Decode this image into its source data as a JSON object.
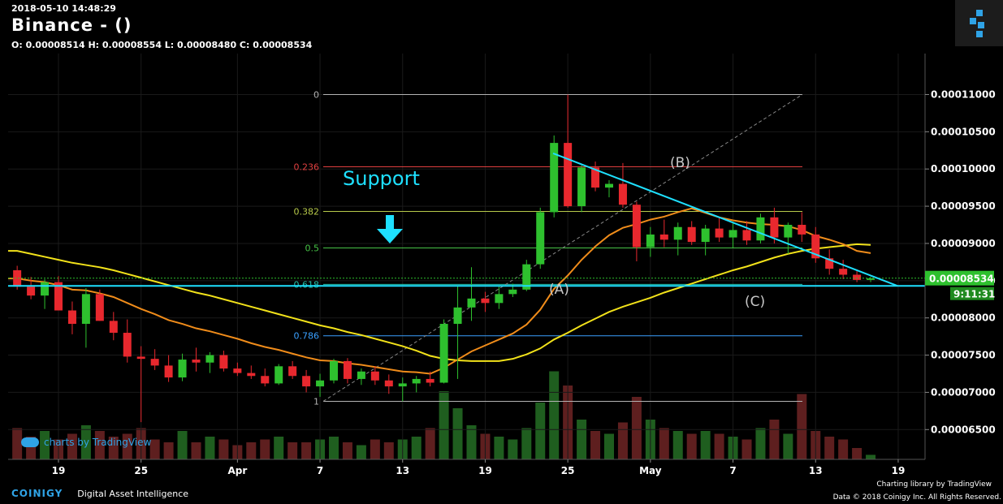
{
  "header": {
    "timestamp": "2018-05-10 14:48:29",
    "title": "Binance -  ()",
    "ohlc": "O: 0.00008514 H: 0.00008554 L: 0.00008480 C: 0.00008534"
  },
  "chart_data": {
    "type": "candlestick",
    "ylim": [
      6.1e-05,
      0.0001155
    ],
    "y_ticks": [
      "0.00011000",
      "0.00010500",
      "0.00010000",
      "0.00009500",
      "0.00009000",
      "0.00008500",
      "0.00008000",
      "0.00007500",
      "0.00007000",
      "0.00006500"
    ],
    "y_tick_values": [
      0.00011,
      0.000105,
      0.0001,
      9.5e-05,
      9e-05,
      8.5e-05,
      8e-05,
      7.5e-05,
      7e-05,
      6.5e-05
    ],
    "x_ticks": [
      "19",
      "25",
      "Apr",
      "7",
      "13",
      "19",
      "25",
      "May",
      "7",
      "13",
      "19"
    ],
    "x_tick_days": [
      0,
      6,
      13,
      19,
      25,
      31,
      37,
      43,
      49,
      55,
      61
    ],
    "last_price_label": "0.00008534",
    "countdown_label": "9:11:31",
    "fib_levels": [
      {
        "label": "0",
        "value": 0.00011,
        "color": "#b3b3b3"
      },
      {
        "label": "0.236",
        "value": 0.0001003,
        "color": "#e04040"
      },
      {
        "label": "0.382",
        "value": 9.43e-05,
        "color": "#b7c94a"
      },
      {
        "label": "0.5",
        "value": 8.94e-05,
        "color": "#47c447"
      },
      {
        "label": "0.618",
        "value": 8.45e-05,
        "color": "#22bfa8"
      },
      {
        "label": "0.786",
        "value": 7.76e-05,
        "color": "#3aa0ff"
      },
      {
        "label": "1",
        "value": 6.88e-05,
        "color": "#b3b3b3"
      }
    ],
    "annotations": {
      "support": "Support",
      "a": "(A)",
      "b": "(B)",
      "c": "(C)"
    },
    "candles_daily": [
      [
        8.64e-05,
        8.7e-05,
        8.38e-05,
        8.42e-05
      ],
      [
        8.42e-05,
        8.55e-05,
        8.25e-05,
        8.3e-05
      ],
      [
        8.3e-05,
        8.52e-05,
        8.12e-05,
        8.48e-05
      ],
      [
        8.48e-05,
        8.56e-05,
        8.1e-05,
        8.1e-05
      ],
      [
        8.1e-05,
        8.22e-05,
        7.78e-05,
        7.92e-05
      ],
      [
        7.92e-05,
        8.4e-05,
        7.6e-05,
        8.32e-05
      ],
      [
        8.32e-05,
        8.38e-05,
        7.96e-05,
        7.96e-05
      ],
      [
        7.96e-05,
        8.08e-05,
        7.7e-05,
        7.8e-05
      ],
      [
        7.8e-05,
        7.98e-05,
        7.4e-05,
        7.48e-05
      ],
      [
        7.48e-05,
        7.62e-05,
        6.6e-05,
        7.45e-05
      ],
      [
        7.45e-05,
        7.58e-05,
        7.3e-05,
        7.36e-05
      ],
      [
        7.36e-05,
        7.5e-05,
        7.14e-05,
        7.2e-05
      ],
      [
        7.2e-05,
        7.52e-05,
        7.15e-05,
        7.44e-05
      ],
      [
        7.44e-05,
        7.6e-05,
        7.28e-05,
        7.4e-05
      ],
      [
        7.4e-05,
        7.54e-05,
        7.26e-05,
        7.5e-05
      ],
      [
        7.5e-05,
        7.56e-05,
        7.28e-05,
        7.32e-05
      ],
      [
        7.32e-05,
        7.4e-05,
        7.22e-05,
        7.26e-05
      ],
      [
        7.26e-05,
        7.36e-05,
        7.18e-05,
        7.22e-05
      ],
      [
        7.22e-05,
        7.32e-05,
        7.08e-05,
        7.12e-05
      ],
      [
        7.12e-05,
        7.38e-05,
        7.1e-05,
        7.35e-05
      ],
      [
        7.35e-05,
        7.42e-05,
        7.18e-05,
        7.22e-05
      ],
      [
        7.22e-05,
        7.3e-05,
        7e-05,
        7.08e-05
      ],
      [
        7.08e-05,
        7.25e-05,
        6.94e-05,
        7.16e-05
      ],
      [
        7.16e-05,
        7.45e-05,
        7.12e-05,
        7.42e-05
      ],
      [
        7.42e-05,
        7.46e-05,
        7.12e-05,
        7.18e-05
      ],
      [
        7.18e-05,
        7.32e-05,
        7.1e-05,
        7.28e-05
      ],
      [
        7.28e-05,
        7.35e-05,
        7.1e-05,
        7.16e-05
      ],
      [
        7.16e-05,
        7.24e-05,
        6.98e-05,
        7.08e-05
      ],
      [
        7.08e-05,
        7.2e-05,
        6.88e-05,
        7.12e-05
      ],
      [
        7.12e-05,
        7.22e-05,
        7e-05,
        7.18e-05
      ],
      [
        7.18e-05,
        7.28e-05,
        7.08e-05,
        7.13e-05
      ],
      [
        7.13e-05,
        7.98e-05,
        7.12e-05,
        7.92e-05
      ],
      [
        7.92e-05,
        8.43e-05,
        7.18e-05,
        8.14e-05
      ],
      [
        8.14e-05,
        8.68e-05,
        7.96e-05,
        8.26e-05
      ],
      [
        8.26e-05,
        8.35e-05,
        8.08e-05,
        8.2e-05
      ],
      [
        8.2e-05,
        8.42e-05,
        8.12e-05,
        8.32e-05
      ],
      [
        8.32e-05,
        8.46e-05,
        8.28e-05,
        8.38e-05
      ],
      [
        8.38e-05,
        8.78e-05,
        8.36e-05,
        8.72e-05
      ],
      [
        8.72e-05,
        9.48e-05,
        8.66e-05,
        9.42e-05
      ],
      [
        9.42e-05,
        0.0001045,
        9.35e-05,
        0.0001035
      ],
      [
        0.0001035,
        0.00011,
        9.48e-05,
        9.5e-05
      ],
      [
        9.5e-05,
        0.0001005,
        9.42e-05,
        0.0001002
      ],
      [
        0.0001002,
        0.000101,
        9.7e-05,
        9.75e-05
      ],
      [
        9.75e-05,
        9.85e-05,
        9.62e-05,
        9.8e-05
      ],
      [
        9.8e-05,
        0.0001008,
        9.48e-05,
        9.52e-05
      ],
      [
        9.52e-05,
        9.56e-05,
        8.76e-05,
        8.95e-05
      ],
      [
        8.95e-05,
        9.22e-05,
        8.82e-05,
        9.12e-05
      ],
      [
        9.12e-05,
        9.32e-05,
        8.95e-05,
        9.05e-05
      ],
      [
        9.05e-05,
        9.28e-05,
        8.84e-05,
        9.22e-05
      ],
      [
        9.22e-05,
        9.3e-05,
        8.98e-05,
        9.02e-05
      ],
      [
        9.02e-05,
        9.25e-05,
        8.84e-05,
        9.2e-05
      ],
      [
        9.2e-05,
        9.34e-05,
        9.02e-05,
        9.08e-05
      ],
      [
        9.08e-05,
        9.28e-05,
        8.94e-05,
        9.18e-05
      ],
      [
        9.18e-05,
        9.3e-05,
        8.98e-05,
        9.04e-05
      ],
      [
        9.04e-05,
        9.4e-05,
        9e-05,
        9.35e-05
      ],
      [
        9.35e-05,
        9.48e-05,
        9e-05,
        9.08e-05
      ],
      [
        9.08e-05,
        9.28e-05,
        8.86e-05,
        9.25e-05
      ],
      [
        9.25e-05,
        9.42e-05,
        9.02e-05,
        9.12e-05
      ],
      [
        9.12e-05,
        9.22e-05,
        8.74e-05,
        8.8e-05
      ],
      [
        8.8e-05,
        8.92e-05,
        8.58e-05,
        8.66e-05
      ],
      [
        8.66e-05,
        8.78e-05,
        8.52e-05,
        8.58e-05
      ],
      [
        8.58e-05,
        8.64e-05,
        8.48e-05,
        8.51e-05
      ],
      [
        8.51e-05,
        8.55e-05,
        8.48e-05,
        8.53e-05
      ]
    ],
    "volume_relative": [
      0.55,
      0.4,
      0.5,
      0.35,
      0.45,
      0.6,
      0.5,
      0.4,
      0.45,
      0.55,
      0.35,
      0.3,
      0.5,
      0.3,
      0.4,
      0.35,
      0.25,
      0.3,
      0.35,
      0.4,
      0.3,
      0.3,
      0.35,
      0.4,
      0.3,
      0.25,
      0.35,
      0.3,
      0.35,
      0.4,
      0.55,
      1.2,
      0.9,
      0.6,
      0.45,
      0.4,
      0.35,
      0.55,
      1.0,
      1.55,
      1.3,
      0.7,
      0.5,
      0.45,
      0.65,
      1.1,
      0.7,
      0.55,
      0.5,
      0.45,
      0.5,
      0.45,
      0.4,
      0.35,
      0.55,
      0.7,
      0.45,
      1.15,
      0.5,
      0.4,
      0.35,
      0.2,
      0.08
    ],
    "ema_fast_orange": [
      8.53e-05,
      8.5e-05,
      8.48e-05,
      8.44e-05,
      8.38e-05,
      8.37e-05,
      8.33e-05,
      8.28e-05,
      8.2e-05,
      8.12e-05,
      8.05e-05,
      7.97e-05,
      7.92e-05,
      7.86e-05,
      7.82e-05,
      7.77e-05,
      7.72e-05,
      7.66e-05,
      7.61e-05,
      7.57e-05,
      7.52e-05,
      7.47e-05,
      7.43e-05,
      7.42e-05,
      7.39e-05,
      7.37e-05,
      7.34e-05,
      7.31e-05,
      7.28e-05,
      7.27e-05,
      7.25e-05,
      7.33e-05,
      7.44e-05,
      7.55e-05,
      7.63e-05,
      7.71e-05,
      7.79e-05,
      7.91e-05,
      8.11e-05,
      8.39e-05,
      8.57e-05,
      8.78e-05,
      8.96e-05,
      9.11e-05,
      9.21e-05,
      9.26e-05,
      9.32e-05,
      9.36e-05,
      9.42e-05,
      9.47e-05,
      9.41e-05,
      9.35e-05,
      9.31e-05,
      9.28e-05,
      9.26e-05,
      9.25e-05,
      9.23e-05,
      9.18e-05,
      9.1e-05,
      9.05e-05,
      8.99e-05,
      8.9e-05,
      8.87e-05
    ],
    "ema_slow_yellow": [
      8.9e-05,
      8.86e-05,
      8.82e-05,
      8.78e-05,
      8.74e-05,
      8.71e-05,
      8.68e-05,
      8.64e-05,
      8.59e-05,
      8.54e-05,
      8.49e-05,
      8.44e-05,
      8.39e-05,
      8.34e-05,
      8.3e-05,
      8.25e-05,
      8.2e-05,
      8.15e-05,
      8.1e-05,
      8.05e-05,
      8e-05,
      7.95e-05,
      7.9e-05,
      7.86e-05,
      7.81e-05,
      7.77e-05,
      7.72e-05,
      7.67e-05,
      7.62e-05,
      7.56e-05,
      7.49e-05,
      7.45e-05,
      7.43e-05,
      7.42e-05,
      7.42e-05,
      7.42e-05,
      7.45e-05,
      7.51e-05,
      7.59e-05,
      7.71e-05,
      7.8e-05,
      7.9e-05,
      7.99e-05,
      8.08e-05,
      8.15e-05,
      8.21e-05,
      8.27e-05,
      8.34e-05,
      8.4e-05,
      8.46e-05,
      8.52e-05,
      8.58e-05,
      8.64e-05,
      8.69e-05,
      8.75e-05,
      8.81e-05,
      8.86e-05,
      8.9e-05,
      8.93e-05,
      8.95e-05,
      8.97e-05,
      8.99e-05,
      8.98e-05
    ]
  },
  "watermark": "charts by TradingView",
  "footer": {
    "brand": "COINIGY",
    "tagline": "Digital Asset Intelligence",
    "charting": "Charting library by  TradingView",
    "copyright": "Data © 2018  Coinigy Inc. All Rights Reserved."
  }
}
